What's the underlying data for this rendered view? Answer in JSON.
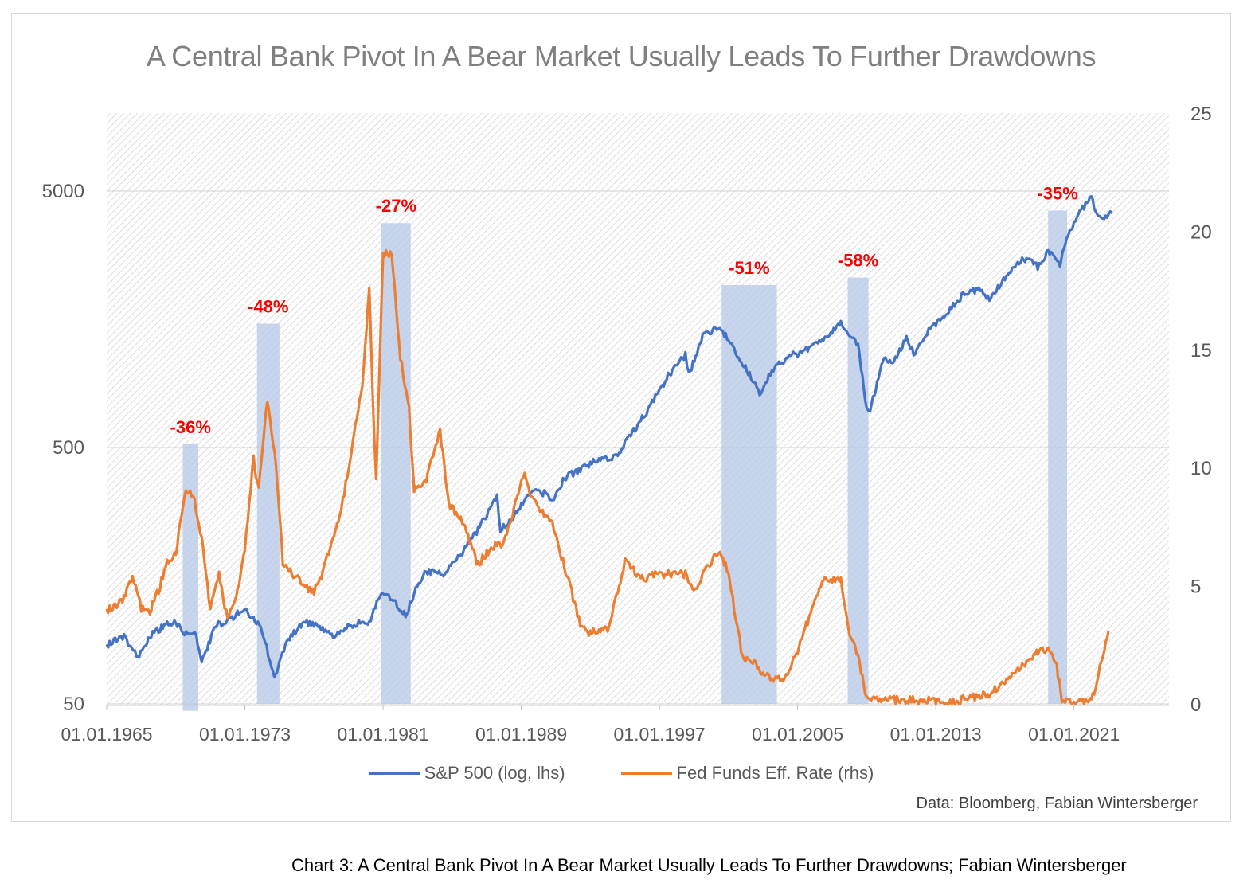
{
  "chart_data": {
    "type": "line",
    "title": "A Central Bank Pivot In A Bear Market Usually Leads To Further Drawdowns",
    "x_ticks": [
      "01.01.1965",
      "01.01.1973",
      "01.01.1981",
      "01.01.1989",
      "01.01.1997",
      "01.01.2005",
      "01.01.2013",
      "01.01.2021"
    ],
    "x_range": [
      1965,
      2026.5
    ],
    "y_left": {
      "scale": "log",
      "ticks": [
        "50",
        "500",
        "5000"
      ],
      "range": [
        50,
        10000
      ]
    },
    "y_right": {
      "ticks": [
        "0",
        "5",
        "10",
        "15",
        "20",
        "25"
      ],
      "range": [
        0,
        25
      ]
    },
    "grid": "horizontal",
    "legend_position": "bottom",
    "colors": {
      "sp500": "#4472c4",
      "fed": "#ed7d31",
      "shade": "#b4c7e7",
      "annotation": "#ff0000"
    },
    "series": [
      {
        "name": "S&P 500 (log, lhs)",
        "axis": "left",
        "points": [
          [
            1965.0,
            85
          ],
          [
            1966.0,
            92
          ],
          [
            1966.8,
            76
          ],
          [
            1967.5,
            92
          ],
          [
            1968.5,
            103
          ],
          [
            1969.0,
            103
          ],
          [
            1969.5,
            95
          ],
          [
            1970.2,
            92
          ],
          [
            1970.5,
            72
          ],
          [
            1971.3,
            101
          ],
          [
            1972.0,
            105
          ],
          [
            1972.9,
            118
          ],
          [
            1973.5,
            107
          ],
          [
            1974.0,
            97
          ],
          [
            1974.7,
            63
          ],
          [
            1975.5,
            90
          ],
          [
            1976.5,
            105
          ],
          [
            1977.5,
            98
          ],
          [
            1978.2,
            90
          ],
          [
            1978.8,
            100
          ],
          [
            1979.5,
            103
          ],
          [
            1980.2,
            105
          ],
          [
            1980.9,
            135
          ],
          [
            1981.5,
            130
          ],
          [
            1982.3,
            110
          ],
          [
            1982.8,
            135
          ],
          [
            1983.5,
            165
          ],
          [
            1984.5,
            160
          ],
          [
            1985.5,
            190
          ],
          [
            1986.5,
            240
          ],
          [
            1987.6,
            320
          ],
          [
            1987.8,
            240
          ],
          [
            1988.5,
            265
          ],
          [
            1989.5,
            340
          ],
          [
            1990.5,
            330
          ],
          [
            1990.8,
            310
          ],
          [
            1991.5,
            380
          ],
          [
            1992.5,
            415
          ],
          [
            1993.5,
            450
          ],
          [
            1994.5,
            460
          ],
          [
            1995.5,
            580
          ],
          [
            1996.5,
            730
          ],
          [
            1997.5,
            950
          ],
          [
            1998.5,
            1150
          ],
          [
            1998.7,
            960
          ],
          [
            1999.5,
            1350
          ],
          [
            2000.5,
            1480
          ],
          [
            2001.5,
            1150
          ],
          [
            2002.3,
            950
          ],
          [
            2002.8,
            800
          ],
          [
            2003.5,
            1000
          ],
          [
            2004.5,
            1130
          ],
          [
            2005.5,
            1200
          ],
          [
            2006.5,
            1300
          ],
          [
            2007.5,
            1520
          ],
          [
            2008.5,
            1250
          ],
          [
            2009.0,
            700
          ],
          [
            2009.2,
            700
          ],
          [
            2010.0,
            1120
          ],
          [
            2010.5,
            1050
          ],
          [
            2011.3,
            1330
          ],
          [
            2011.8,
            1150
          ],
          [
            2012.5,
            1400
          ],
          [
            2013.5,
            1650
          ],
          [
            2014.5,
            1950
          ],
          [
            2015.5,
            2080
          ],
          [
            2016.1,
            1900
          ],
          [
            2017.0,
            2280
          ],
          [
            2018.0,
            2700
          ],
          [
            2018.5,
            2750
          ],
          [
            2018.9,
            2500
          ],
          [
            2019.5,
            2950
          ],
          [
            2020.2,
            2600
          ],
          [
            2020.5,
            3100
          ],
          [
            2021.0,
            3800
          ],
          [
            2021.5,
            4300
          ],
          [
            2022.0,
            4700
          ],
          [
            2022.5,
            3900
          ],
          [
            2023.0,
            4000
          ],
          [
            2023.2,
            4100
          ]
        ]
      },
      {
        "name": "Fed Funds Eff. Rate (rhs)",
        "axis": "right",
        "points": [
          [
            1965.0,
            4.0
          ],
          [
            1965.5,
            4.1
          ],
          [
            1966.0,
            4.5
          ],
          [
            1966.5,
            5.5
          ],
          [
            1967.0,
            4.0
          ],
          [
            1967.5,
            3.9
          ],
          [
            1968.0,
            4.8
          ],
          [
            1968.5,
            6.0
          ],
          [
            1969.0,
            6.3
          ],
          [
            1969.5,
            8.9
          ],
          [
            1970.0,
            8.9
          ],
          [
            1970.5,
            7.0
          ],
          [
            1971.0,
            4.0
          ],
          [
            1971.5,
            5.5
          ],
          [
            1972.0,
            3.5
          ],
          [
            1972.5,
            4.5
          ],
          [
            1973.0,
            6.5
          ],
          [
            1973.5,
            10.4
          ],
          [
            1973.8,
            9.0
          ],
          [
            1974.3,
            12.9
          ],
          [
            1974.8,
            10.0
          ],
          [
            1975.2,
            6.0
          ],
          [
            1975.8,
            5.5
          ],
          [
            1976.5,
            5.0
          ],
          [
            1977.0,
            4.7
          ],
          [
            1977.5,
            5.5
          ],
          [
            1978.0,
            6.8
          ],
          [
            1978.5,
            7.9
          ],
          [
            1979.0,
            10.0
          ],
          [
            1979.8,
            13.5
          ],
          [
            1980.2,
            17.6
          ],
          [
            1980.4,
            13.0
          ],
          [
            1980.6,
            9.5
          ],
          [
            1981.0,
            19.0
          ],
          [
            1981.5,
            19.1
          ],
          [
            1982.0,
            14.7
          ],
          [
            1982.5,
            12.5
          ],
          [
            1982.8,
            9.0
          ],
          [
            1983.5,
            9.4
          ],
          [
            1984.3,
            11.6
          ],
          [
            1984.8,
            8.4
          ],
          [
            1985.5,
            7.9
          ],
          [
            1986.5,
            5.9
          ],
          [
            1987.0,
            6.4
          ],
          [
            1987.5,
            6.7
          ],
          [
            1988.0,
            6.8
          ],
          [
            1988.5,
            8.0
          ],
          [
            1989.2,
            9.8
          ],
          [
            1989.5,
            9.0
          ],
          [
            1990.0,
            8.2
          ],
          [
            1990.8,
            7.7
          ],
          [
            1991.5,
            5.8
          ],
          [
            1992.5,
            3.2
          ],
          [
            1993.0,
            3.0
          ],
          [
            1994.0,
            3.2
          ],
          [
            1994.5,
            4.5
          ],
          [
            1995.0,
            6.0
          ],
          [
            1996.0,
            5.3
          ],
          [
            1997.0,
            5.5
          ],
          [
            1998.5,
            5.5
          ],
          [
            1999.0,
            4.8
          ],
          [
            2000.0,
            6.0
          ],
          [
            2000.5,
            6.5
          ],
          [
            2001.0,
            5.5
          ],
          [
            2001.8,
            2.0
          ],
          [
            2002.5,
            1.7
          ],
          [
            2003.0,
            1.2
          ],
          [
            2004.0,
            1.0
          ],
          [
            2004.5,
            1.3
          ],
          [
            2005.5,
            3.3
          ],
          [
            2006.5,
            5.2
          ],
          [
            2007.5,
            5.2
          ],
          [
            2008.0,
            3.0
          ],
          [
            2008.5,
            2.0
          ],
          [
            2009.0,
            0.2
          ],
          [
            2010.0,
            0.2
          ],
          [
            2012.0,
            0.15
          ],
          [
            2014.0,
            0.1
          ],
          [
            2016.0,
            0.4
          ],
          [
            2017.5,
            1.2
          ],
          [
            2018.5,
            2.0
          ],
          [
            2019.5,
            2.4
          ],
          [
            2020.0,
            1.6
          ],
          [
            2020.3,
            0.1
          ],
          [
            2021.0,
            0.1
          ],
          [
            2022.0,
            0.1
          ],
          [
            2022.5,
            1.5
          ],
          [
            2023.0,
            3.1
          ]
        ]
      }
    ],
    "shaded_periods": [
      {
        "start": 1969.4,
        "end": 1970.3,
        "top_value": 515,
        "bottom_value": 47,
        "label": "-36%"
      },
      {
        "start": 1973.7,
        "end": 1975.0,
        "top_value": 1520,
        "bottom_value": 50,
        "label": "-48%"
      },
      {
        "start": 1980.9,
        "end": 1982.6,
        "top_value": 3750,
        "bottom_value": 50,
        "label": "-27%"
      },
      {
        "start": 2000.6,
        "end": 2003.8,
        "top_value": 2150,
        "bottom_value": 50,
        "label": "-51%"
      },
      {
        "start": 2007.9,
        "end": 2009.1,
        "top_value": 2300,
        "bottom_value": 50,
        "label": "-58%"
      },
      {
        "start": 2019.5,
        "end": 2020.6,
        "top_value": 4200,
        "bottom_value": 50,
        "label": "-35%"
      }
    ]
  },
  "legend": {
    "sp500_label": "S&P 500 (log, lhs)",
    "fed_label": "Fed Funds Eff. Rate (rhs)"
  },
  "source_note": "Data: Bloomberg, Fabian Wintersberger",
  "caption": "Chart 3: A Central Bank Pivot In A Bear Market Usually Leads To Further Drawdowns; Fabian Wintersberger"
}
